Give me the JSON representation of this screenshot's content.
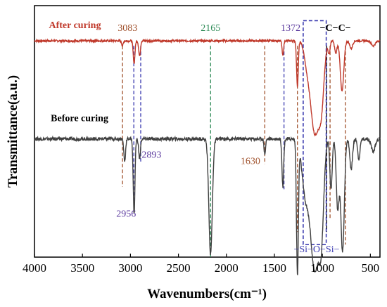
{
  "chart_data": {
    "type": "line",
    "title": "",
    "xlabel": "Wavenumbers(cm⁻¹)",
    "ylabel": "Transmittance(a.u.)",
    "xlim": [
      4000,
      400
    ],
    "x_reversed": true,
    "xticks": [
      4000,
      3500,
      3000,
      2500,
      2000,
      1500,
      1000,
      500
    ],
    "xtick_labels": [
      "4000",
      "3500",
      "3000",
      "2500",
      "2000",
      "1500",
      "1000",
      "500"
    ],
    "yticks_shown": false,
    "series": [
      {
        "name": "After curing",
        "color": "#c0392b",
        "label_color": "#c0392b",
        "baseline": 0.86,
        "noise": 0.004,
        "peaks": [
          {
            "x": 3083,
            "depth": 0.02,
            "width": 8
          },
          {
            "x": 2962,
            "depth": 0.09,
            "width": 9
          },
          {
            "x": 2905,
            "depth": 0.06,
            "width": 9
          },
          {
            "x": 1412,
            "depth": 0.06,
            "width": 8
          },
          {
            "x": 1260,
            "depth": 0.18,
            "width": 9
          },
          {
            "x": 1160,
            "depth": 0.08,
            "width": 30
          },
          {
            "x": 1080,
            "depth": 0.36,
            "width": 42
          },
          {
            "x": 1010,
            "depth": 0.22,
            "width": 28
          },
          {
            "x": 930,
            "depth": 0.05,
            "width": 10
          },
          {
            "x": 860,
            "depth": 0.05,
            "width": 12
          },
          {
            "x": 795,
            "depth": 0.2,
            "width": 18
          },
          {
            "x": 700,
            "depth": 0.03,
            "width": 15
          },
          {
            "x": 470,
            "depth": 0.02,
            "width": 20
          }
        ]
      },
      {
        "name": "Before curing",
        "color": "#404040",
        "label_color": "#000000",
        "baseline": 0.47,
        "noise": 0.007,
        "peaks": [
          {
            "x": 3060,
            "depth": 0.09,
            "width": 9
          },
          {
            "x": 2962,
            "depth": 0.3,
            "width": 9
          },
          {
            "x": 2905,
            "depth": 0.08,
            "width": 9
          },
          {
            "x": 2165,
            "depth": 0.46,
            "width": 18
          },
          {
            "x": 1600,
            "depth": 0.06,
            "width": 8
          },
          {
            "x": 1412,
            "depth": 0.19,
            "width": 9
          },
          {
            "x": 1260,
            "depth": 0.53,
            "width": 10
          },
          {
            "x": 1180,
            "depth": 0.2,
            "width": 35
          },
          {
            "x": 1080,
            "depth": 0.52,
            "width": 45
          },
          {
            "x": 1010,
            "depth": 0.3,
            "width": 25
          },
          {
            "x": 910,
            "depth": 0.2,
            "width": 12
          },
          {
            "x": 840,
            "depth": 0.28,
            "width": 15
          },
          {
            "x": 790,
            "depth": 0.45,
            "width": 18
          },
          {
            "x": 700,
            "depth": 0.12,
            "width": 14
          },
          {
            "x": 620,
            "depth": 0.08,
            "width": 12
          },
          {
            "x": 470,
            "depth": 0.05,
            "width": 20
          }
        ]
      }
    ],
    "reference_lines": [
      {
        "x": 3083,
        "color": "#a0522d",
        "y_top": 0.84,
        "y_bottom": 0.28
      },
      {
        "x": 2965,
        "color": "#3b3bb0",
        "y_top": 0.84,
        "y_bottom": 0.17
      },
      {
        "x": 2893,
        "color": "#3b3bb0",
        "y_top": 0.84,
        "y_bottom": 0.38
      },
      {
        "x": 2165,
        "color": "#2e8b57",
        "y_top": 0.84,
        "y_bottom": 0.0
      },
      {
        "x": 1600,
        "color": "#a0522d",
        "y_top": 0.84,
        "y_bottom": 0.37
      },
      {
        "x": 1400,
        "color": "#3b3bb0",
        "y_top": 0.84,
        "y_bottom": 0.27
      },
      {
        "x": 1260,
        "color": "#a0522d",
        "y_top": 0.84,
        "y_bottom": 0.1
      },
      {
        "x": 955,
        "color": "#000000",
        "y_top": 0.84,
        "y_bottom": 0.1
      },
      {
        "x": 920,
        "color": "#a0522d",
        "y_top": 0.84,
        "y_bottom": 0.15
      },
      {
        "x": 760,
        "color": "#a0522d",
        "y_top": 0.84,
        "y_bottom": 0.05
      }
    ],
    "highlight_box": {
      "x_from": 1200,
      "x_to": 960,
      "y_top": 0.94,
      "y_bottom": 0.05,
      "color": "#3b3bb0"
    },
    "annotations": [
      {
        "text": "3083",
        "x": 3030,
        "y": 0.9,
        "color": "#a0522d",
        "style": "normal"
      },
      {
        "text": "2165",
        "x": 2165,
        "y": 0.9,
        "color": "#2e8b57",
        "style": "normal"
      },
      {
        "text": "1372",
        "x": 1330,
        "y": 0.9,
        "color": "#5b3a9e",
        "style": "normal"
      },
      {
        "text": "−C−C−",
        "x": 865,
        "y": 0.9,
        "color": "#000000",
        "style": "bold"
      },
      {
        "text": "2893",
        "x": 2780,
        "y": 0.395,
        "color": "#5b3a9e",
        "style": "normal"
      },
      {
        "text": "1630",
        "x": 1750,
        "y": 0.37,
        "color": "#a0522d",
        "style": "normal"
      },
      {
        "text": "2956",
        "x": 3045,
        "y": 0.16,
        "color": "#5b3a9e",
        "style": "normal"
      },
      {
        "text": "−Si−O−Si−",
        "x": 1060,
        "y": 0.02,
        "color": "#3b3bb0",
        "style": "normal"
      }
    ],
    "series_labels": [
      {
        "text": "After curing",
        "x": 3850,
        "y": 0.91,
        "color": "#c0392b"
      },
      {
        "text": "Before curing",
        "x": 3830,
        "y": 0.54,
        "color": "#000000"
      }
    ]
  }
}
